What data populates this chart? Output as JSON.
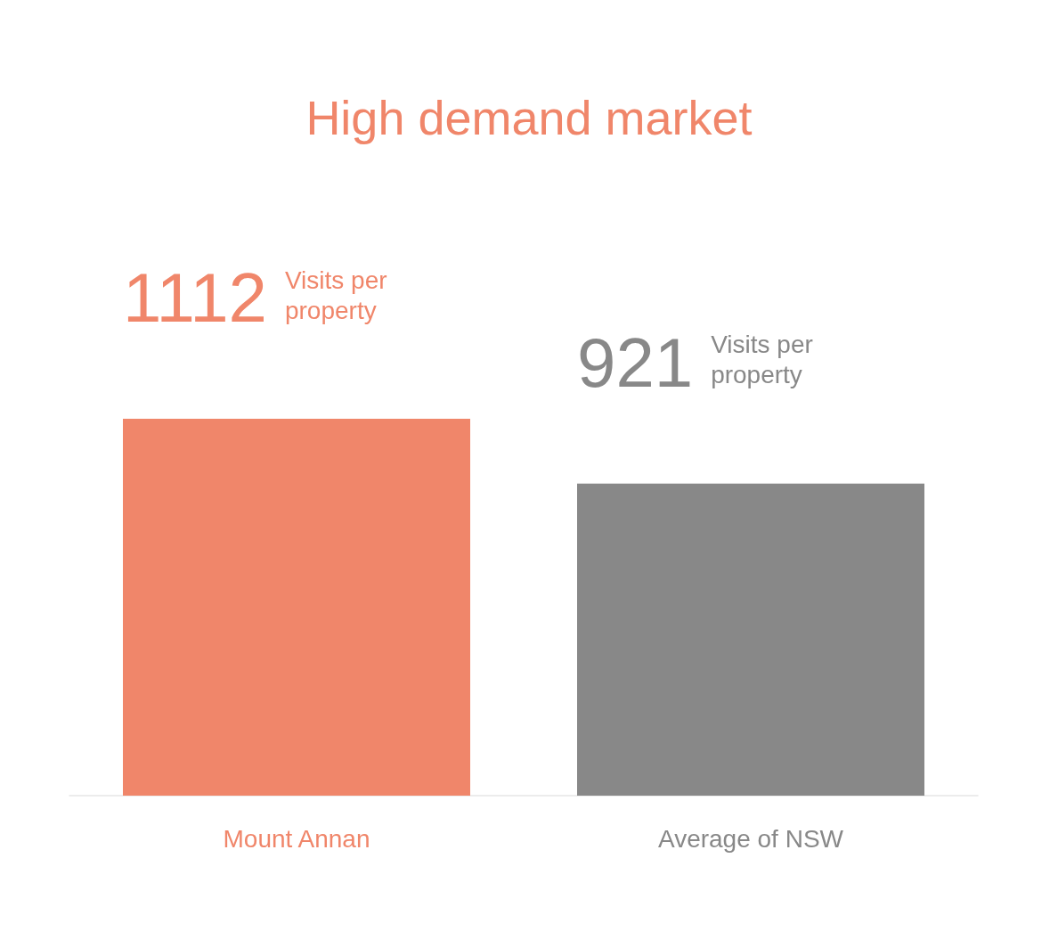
{
  "chart_data": {
    "type": "bar",
    "title": "High demand market",
    "categories": [
      "Mount Annan",
      "Average of NSW"
    ],
    "values": [
      1112,
      921
    ],
    "colors": [
      "#f0866a",
      "#888888"
    ],
    "data_labels": true,
    "annotations": [
      "Visits per property",
      "Visits per property"
    ],
    "grid": false,
    "tick_labels": "x"
  }
}
